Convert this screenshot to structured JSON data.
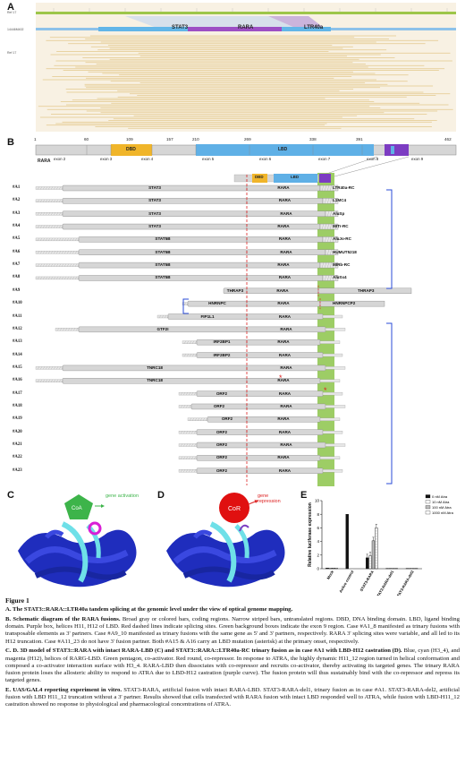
{
  "panels": {
    "a": "A",
    "b": "B",
    "c": "C",
    "d": "D",
    "e": "E"
  },
  "panelA": {
    "track_labels": [
      "Ref 17",
      "14446M402",
      "Ref 17"
    ],
    "genes": [
      "STAT3",
      "RARA",
      "LTR40a"
    ],
    "colors": {
      "track": "#9dc64a",
      "genes": "#62b6e8",
      "rara": "#9d4fc4",
      "reads": "#e8cf97",
      "bg": "#f8f1e3"
    }
  },
  "panelB": {
    "protein_name": "RARA",
    "positions": [
      "1",
      "60",
      "109",
      "157",
      "210",
      "269",
      "338",
      "391",
      "462"
    ],
    "exons": [
      "exon  2",
      "exon 3",
      "exon 4",
      "exon 5",
      "exon 6",
      "exon 7",
      "exon 8",
      "exon 9"
    ],
    "domains": {
      "dbd": "DBD",
      "lbd": "LBD"
    },
    "colors": {
      "dbd": "#f0b52a",
      "lbd": "#5fb0e6",
      "h11h12": "#7c3cc2",
      "box": "#7bbf48",
      "line": "#d22"
    },
    "cases": [
      {
        "id": "#A1",
        "partner5": "STAT3",
        "rara": "RARA",
        "partner3": "LTR40a-RC"
      },
      {
        "id": "#A2",
        "partner5": "STAT3",
        "rara": "RARA",
        "partner3": "L1MC4"
      },
      {
        "id": "#A3",
        "partner5": "STAT3",
        "rara": "RARA",
        "partner3": "AluSp"
      },
      {
        "id": "#A4",
        "partner5": "STAT3",
        "rara": "RARA",
        "partner3": "MITr-RC"
      },
      {
        "id": "#A5",
        "partner5": "STAT5B",
        "rara": "RARA",
        "partner3": "AluJo-RC"
      },
      {
        "id": "#A6",
        "partner5": "STAT5B",
        "rara": "RARA",
        "partner3": "HUMUT5218"
      },
      {
        "id": "#A7",
        "partner5": "STAT5B",
        "rara": "RARA",
        "partner3": "MIRb-RC"
      },
      {
        "id": "#A8",
        "partner5": "STAT5B",
        "rara": "RARA",
        "partner3": "AluSx4"
      },
      {
        "id": "#A9",
        "partner5": "THRAP3",
        "rara": "RARA",
        "partner3": "THRAP3"
      },
      {
        "id": "#A10",
        "partner5": "HNRNPC",
        "rara": "RARA",
        "partner3": "HNRNPCP2"
      },
      {
        "id": "#A11",
        "partner5": "FIP1L1",
        "rara": "RARA",
        "partner3": ""
      },
      {
        "id": "#A12",
        "partner5": "GTF2I",
        "rara": "RARA",
        "partner3": ""
      },
      {
        "id": "#A13",
        "partner5": "IRF2BP1",
        "rara": "RARA",
        "partner3": ""
      },
      {
        "id": "#A14",
        "partner5": "IRF2BP2",
        "rara": "RARA",
        "partner3": ""
      },
      {
        "id": "#A15",
        "partner5": "TNRC18",
        "rara": "RARA",
        "partner3": ""
      },
      {
        "id": "#A16",
        "partner5": "TNRC18",
        "rara": "RARA",
        "partner3": ""
      },
      {
        "id": "#A17",
        "partner5": "ORF2",
        "rara": "RARA",
        "partner3": ""
      },
      {
        "id": "#A18",
        "partner5": "ORF2",
        "rara": "RARA",
        "partner3": ""
      },
      {
        "id": "#A19",
        "partner5": "ORF2",
        "rara": "RARA",
        "partner3": ""
      },
      {
        "id": "#A20",
        "partner5": "ORF2",
        "rara": "RARA",
        "partner3": ""
      },
      {
        "id": "#A21",
        "partner5": "ORF2",
        "rara": "RARA",
        "partner3": ""
      },
      {
        "id": "#A22",
        "partner5": "ORF2",
        "rara": "RARA",
        "partner3": ""
      },
      {
        "id": "#A23",
        "partner5": "ORF2",
        "rara": "RARA",
        "partner3": ""
      }
    ]
  },
  "panelC": {
    "protein": "CoA",
    "annotation": "gene activation"
  },
  "panelD": {
    "protein": "CoR",
    "annotation": "gene repression"
  },
  "chart_data": {
    "type": "bar",
    "categories": [
      "Mock",
      "Active control",
      "STAT3-RARA",
      "STAT3-RARA-del1",
      "STAT3-RARA-del2"
    ],
    "series": [
      {
        "name": "0 nM Atra",
        "values": [
          0.1,
          8.0,
          1.6,
          0.05,
          0.05
        ]
      },
      {
        "name": "10 nM Atra",
        "values": [
          0.1,
          0,
          1.9,
          0.05,
          0.05
        ]
      },
      {
        "name": "100 nM Atra",
        "values": [
          0.1,
          0,
          4.1,
          0.05,
          0.05
        ]
      },
      {
        "name": "1000 nM Atra",
        "values": [
          0.1,
          0,
          6.0,
          0.05,
          0.05
        ]
      }
    ],
    "ylabel": "Relative luciferase expression",
    "ylim": [
      0,
      10
    ],
    "yticks": [
      "0",
      "2",
      "4",
      "6",
      "8",
      "10"
    ],
    "legend_position": "top-right",
    "colors": [
      "#111111",
      "#ffffff",
      "#bdbdbd",
      "#ffffff"
    ]
  },
  "caption": {
    "figure": "Figure 1",
    "a_title": "A. The STAT3::RARA::LTR40a tandem splicing at the genomic level under the view of optical genome mapping.",
    "b_title": "B. Schematic diagram of the RARA fusions.",
    "b_text": "Broad gray or colored bars, coding regions. Narrow striped bars, untranslated regions. DBD, DNA binding domain. LBD, ligand binding domain. Purple box, helices H11, H12 of LBD. Red dashed lines indicate splicing sites. Green background boxes indicate the exon 9 region. Case #A1_8 manifested as trinary fusions with transposable elements as 3' partners. Case #A9_10 manifested as trinary fusions with the same gene as 5' and 3' partners, respectively. RARA 3' splicing sites were variable, and all led to its H12 truncation. Case #A11_23 do not have 3' fusion partner. Both #A15 & A16 carry an LBD mutation (asterisk) at the primary onset, respectively.",
    "cd_title": "C. D. 3D model of STAT3::RARA with intact RARA-LBD (C) and STAT3::RARA::LTR40a-RC trinary fusion as in case #A1 with LBD-H12 castration (D).",
    "cd_text": "Blue, cyan (H3_4), and magenta (H12), helices of RARG-LBD. Green pentagon, co-activator. Red round, co-repressor. In response to ATRA, the highly dynamic H11_12 region turned in helical conformation and composed a co-activator interaction surface with H3_4. RARA-LBD then dissociates with co-repressor and recruits co-activator, thereby activating its targeted genes. The trinary RARA fusion protein loses the allosteric ability to respond to ATRA due to LBD-H12 castration (purple curve). The fusion protein will thus sustainably bind with the co-repressor and repress its targeted genes.",
    "e_title": "E. UAS/GAL4 reporting experiment in vitro.",
    "e_text": "STAT3-RARA, artificial fusion with intact RARA-LBD. STAT3-RARA-del1, trinary fusion as in case #A1. STAT3-RARA-del2, artificial fusion with LBD H11_12 truncation without a 3' partner. Results showed that cells transfected with RARA fusion with intact LBD responded well to ATRA, while fusion with LBD-H11_12 castration showed no response to physiological and pharmacological concentrations of ATRA."
  }
}
